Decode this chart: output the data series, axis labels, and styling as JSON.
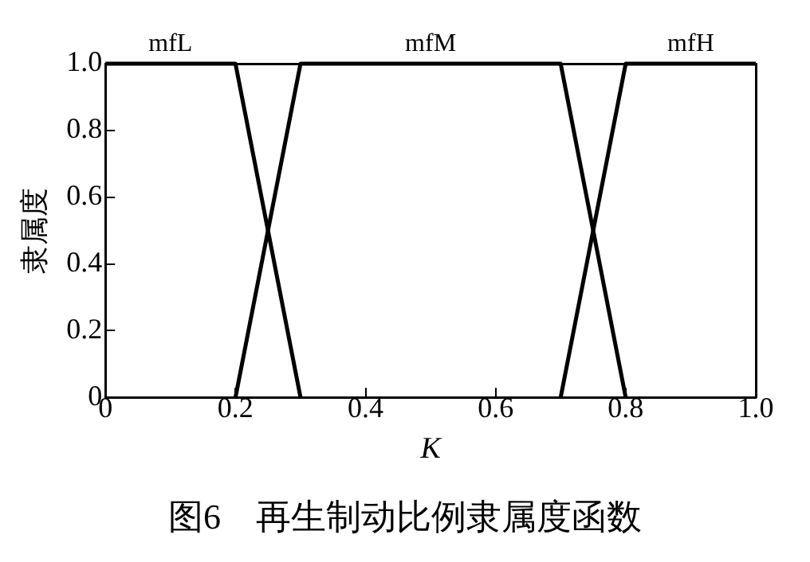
{
  "chart_data": {
    "type": "line",
    "xlabel": "K",
    "ylabel": "隶属度",
    "xlim": [
      0,
      1
    ],
    "ylim": [
      0,
      1
    ],
    "xticks": [
      0,
      0.2,
      0.4,
      0.6,
      0.8,
      {
        "value": 1,
        "label": "1.0"
      }
    ],
    "yticks": [
      0,
      0.2,
      0.4,
      0.6,
      0.8,
      {
        "value": 1,
        "label": "1.0"
      }
    ],
    "series": [
      {
        "name": "mfL",
        "color": "#000000",
        "x": [
          0,
          0.2,
          0.3
        ],
        "values": [
          1,
          1,
          0
        ]
      },
      {
        "name": "mfM",
        "color": "#000000",
        "x": [
          0.2,
          0.3,
          0.7,
          0.8
        ],
        "values": [
          0,
          1,
          1,
          0
        ]
      },
      {
        "name": "mfH",
        "color": "#000000",
        "x": [
          0.7,
          0.8,
          1
        ],
        "values": [
          0,
          1,
          1
        ]
      }
    ],
    "grid": false,
    "legend": false,
    "marker": "none",
    "line_style": "solid",
    "annotations": [
      "图6　再生制动比例隶属度函数"
    ]
  }
}
